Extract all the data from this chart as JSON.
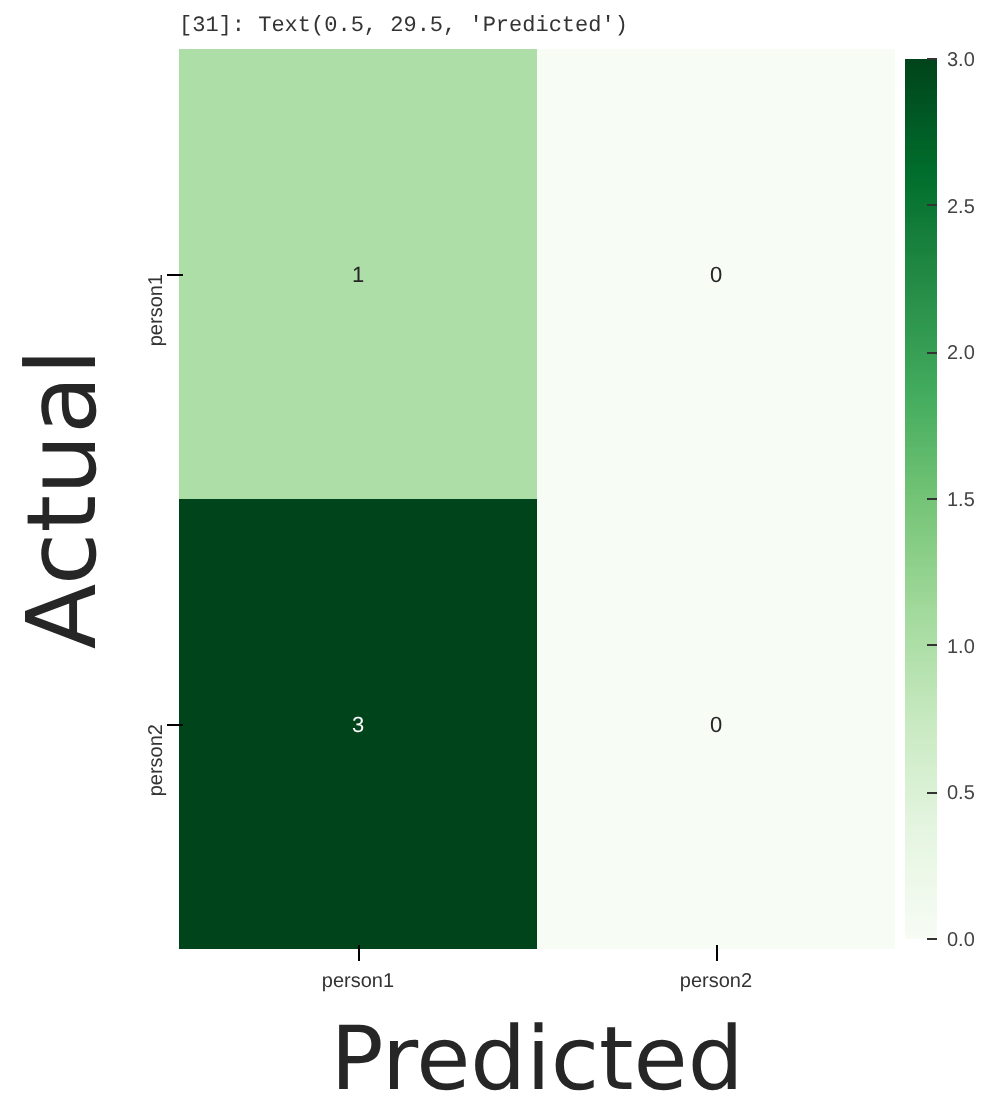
{
  "chart_data": {
    "type": "heatmap",
    "annotations": [
      "[31]: Text(0.5, 29.5, 'Predicted')"
    ],
    "xlabel": "Predicted",
    "ylabel": "Actual",
    "categories": [
      "person1",
      "person2"
    ],
    "y_categories": [
      "person1",
      "person2"
    ],
    "cells": [
      [
        1,
        0
      ],
      [
        3,
        0
      ]
    ],
    "data_labels": true,
    "clim": [
      0,
      3
    ],
    "cticks": [
      {
        "value": 0,
        "label": "0.0"
      },
      0.5,
      {
        "value": 1,
        "label": "1.0"
      },
      1.5,
      {
        "value": 2,
        "label": "2.0"
      },
      2.5,
      {
        "value": 3,
        "label": "3.0"
      }
    ]
  }
}
